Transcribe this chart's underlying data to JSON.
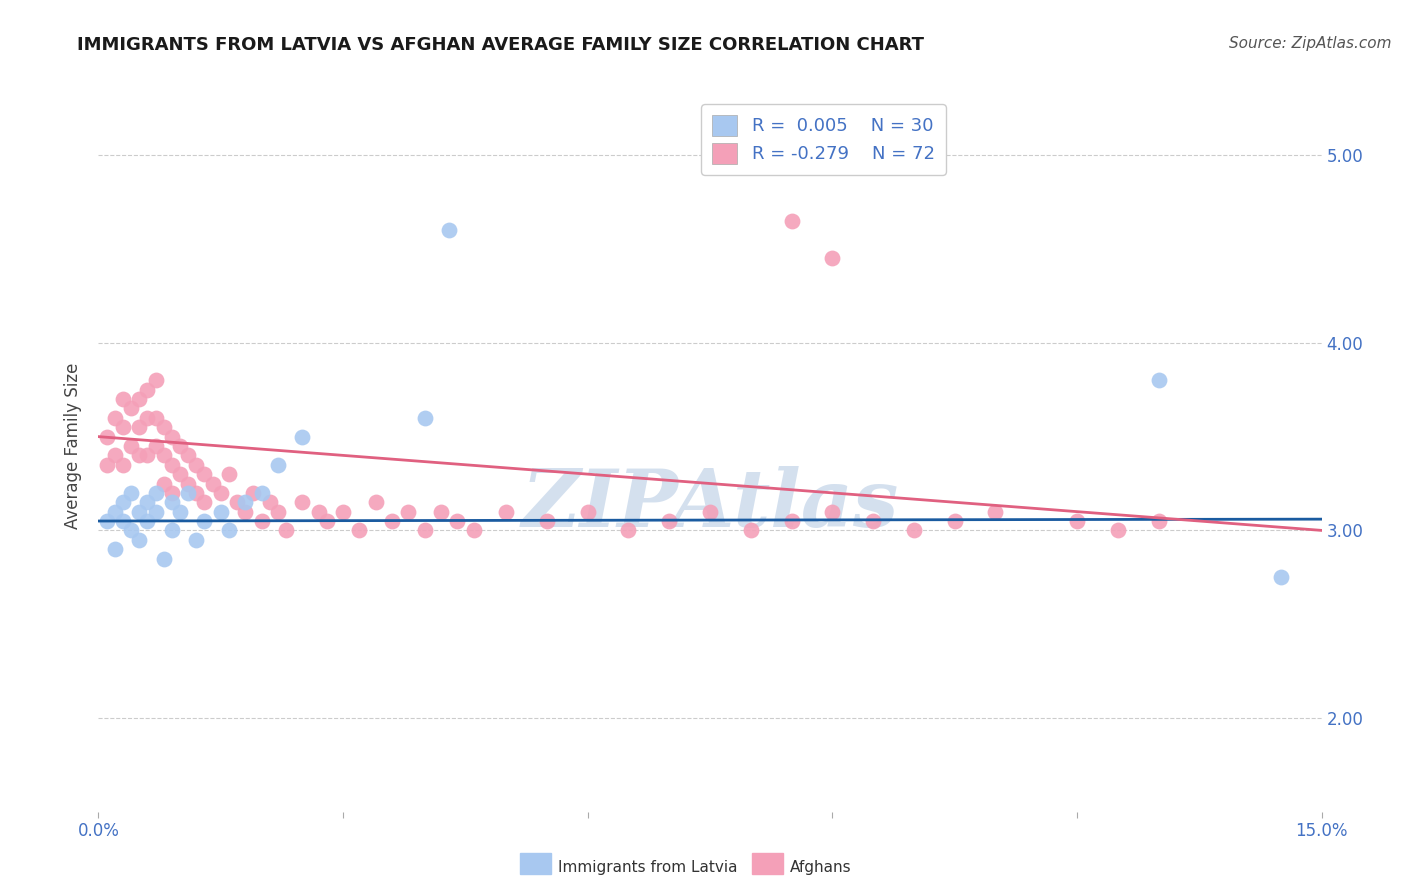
{
  "title": "IMMIGRANTS FROM LATVIA VS AFGHAN AVERAGE FAMILY SIZE CORRELATION CHART",
  "source": "Source: ZipAtlas.com",
  "ylabel": "Average Family Size",
  "xlim": [
    0.0,
    0.15
  ],
  "ylim": [
    1.5,
    5.4
  ],
  "yticks": [
    2.0,
    3.0,
    4.0,
    5.0
  ],
  "xticks": [
    0.0,
    0.03,
    0.06,
    0.09,
    0.12,
    0.15
  ],
  "xtick_labels": [
    "0.0%",
    "",
    "",
    "",
    "",
    "15.0%"
  ],
  "legend_r1": "0.005",
  "legend_n1": "30",
  "legend_r2": "-0.279",
  "legend_n2": "72",
  "watermark": "ZIPAtlas",
  "scatter_latvia_x": [
    0.001,
    0.002,
    0.002,
    0.003,
    0.003,
    0.004,
    0.004,
    0.005,
    0.005,
    0.006,
    0.006,
    0.007,
    0.007,
    0.008,
    0.009,
    0.009,
    0.01,
    0.011,
    0.012,
    0.013,
    0.015,
    0.016,
    0.018,
    0.02,
    0.022,
    0.025,
    0.04,
    0.043,
    0.13,
    0.145
  ],
  "scatter_latvia_y": [
    3.05,
    3.1,
    2.9,
    3.15,
    3.05,
    3.2,
    3.0,
    3.1,
    2.95,
    3.15,
    3.05,
    3.2,
    3.1,
    2.85,
    3.0,
    3.15,
    3.1,
    3.2,
    2.95,
    3.05,
    3.1,
    3.0,
    3.15,
    3.2,
    3.35,
    3.5,
    3.6,
    4.6,
    3.8,
    2.75
  ],
  "scatter_afghan_x": [
    0.001,
    0.001,
    0.002,
    0.002,
    0.003,
    0.003,
    0.003,
    0.004,
    0.004,
    0.005,
    0.005,
    0.005,
    0.006,
    0.006,
    0.006,
    0.007,
    0.007,
    0.007,
    0.008,
    0.008,
    0.008,
    0.009,
    0.009,
    0.009,
    0.01,
    0.01,
    0.011,
    0.011,
    0.012,
    0.012,
    0.013,
    0.013,
    0.014,
    0.015,
    0.016,
    0.017,
    0.018,
    0.019,
    0.02,
    0.021,
    0.022,
    0.023,
    0.025,
    0.027,
    0.028,
    0.03,
    0.032,
    0.034,
    0.036,
    0.038,
    0.04,
    0.042,
    0.044,
    0.046,
    0.05,
    0.055,
    0.06,
    0.065,
    0.07,
    0.075,
    0.08,
    0.085,
    0.09,
    0.095,
    0.1,
    0.105,
    0.11,
    0.12,
    0.125,
    0.13,
    0.085,
    0.09
  ],
  "scatter_afghan_y": [
    3.35,
    3.5,
    3.6,
    3.4,
    3.7,
    3.55,
    3.35,
    3.65,
    3.45,
    3.7,
    3.55,
    3.4,
    3.75,
    3.6,
    3.4,
    3.8,
    3.6,
    3.45,
    3.55,
    3.4,
    3.25,
    3.5,
    3.35,
    3.2,
    3.45,
    3.3,
    3.4,
    3.25,
    3.35,
    3.2,
    3.3,
    3.15,
    3.25,
    3.2,
    3.3,
    3.15,
    3.1,
    3.2,
    3.05,
    3.15,
    3.1,
    3.0,
    3.15,
    3.1,
    3.05,
    3.1,
    3.0,
    3.15,
    3.05,
    3.1,
    3.0,
    3.1,
    3.05,
    3.0,
    3.1,
    3.05,
    3.1,
    3.0,
    3.05,
    3.1,
    3.0,
    3.05,
    3.1,
    3.05,
    3.0,
    3.05,
    3.1,
    3.05,
    3.0,
    3.05,
    4.65,
    4.45
  ],
  "line_latvia_color": "#1A5BA0",
  "line_afghan_color": "#E06080",
  "scatter_latvia_color": "#A8C8F0",
  "scatter_afghan_color": "#F4A0B8",
  "background_color": "#FFFFFF",
  "grid_color": "#CCCCCC",
  "title_color": "#1A1A1A",
  "axis_label_color": "#444444",
  "tick_color": "#4472C4",
  "watermark_color": "#B8CCE4",
  "title_fontsize": 13,
  "source_fontsize": 11,
  "ylabel_fontsize": 12,
  "tick_fontsize": 12,
  "legend_fontsize": 13
}
